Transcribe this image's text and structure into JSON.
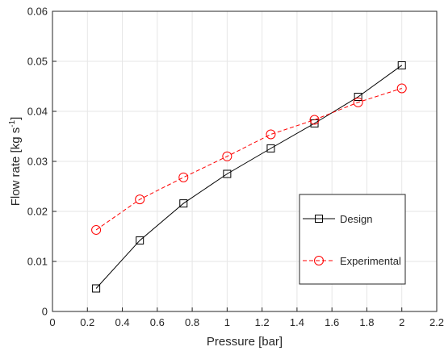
{
  "chart_data": {
    "type": "line",
    "xlabel": "Pressure [bar]",
    "ylabel": {
      "prefix": "Flow rate [kg s",
      "sup": "-1",
      "suffix": "]"
    },
    "xlim": [
      0,
      2.2
    ],
    "ylim": [
      0,
      0.06
    ],
    "xticks": [
      0,
      0.2,
      0.4,
      0.6,
      0.8,
      1,
      1.2,
      1.4,
      1.6,
      1.8,
      2,
      2.2
    ],
    "xtick_labels": [
      "0",
      "0.2",
      "0.4",
      "0.6",
      "0.8",
      "1",
      "1.2",
      "1.4",
      "1.6",
      "1.8",
      "2",
      "2.2"
    ],
    "yticks": [
      0,
      0.01,
      0.02,
      0.03,
      0.04,
      0.05,
      0.06
    ],
    "ytick_labels": [
      "0",
      "0.01",
      "0.02",
      "0.03",
      "0.04",
      "0.05",
      "0.06"
    ],
    "grid": true,
    "legend_position": "lower-right",
    "series": [
      {
        "name": "Design",
        "color": "#000000",
        "line_style": "solid",
        "marker": "square",
        "x": [
          0.25,
          0.5,
          0.75,
          1.0,
          1.25,
          1.5,
          1.75,
          2.0
        ],
        "y": [
          0.0046,
          0.0142,
          0.0216,
          0.0275,
          0.0326,
          0.0376,
          0.0429,
          0.0492
        ]
      },
      {
        "name": "Experimental",
        "color": "#ff0000",
        "line_style": "dashed",
        "marker": "circle",
        "x": [
          0.25,
          0.5,
          0.75,
          1.0,
          1.25,
          1.5,
          1.75,
          2.0
        ],
        "y": [
          0.0163,
          0.0224,
          0.0268,
          0.031,
          0.0354,
          0.0383,
          0.0418,
          0.0446
        ]
      }
    ]
  }
}
